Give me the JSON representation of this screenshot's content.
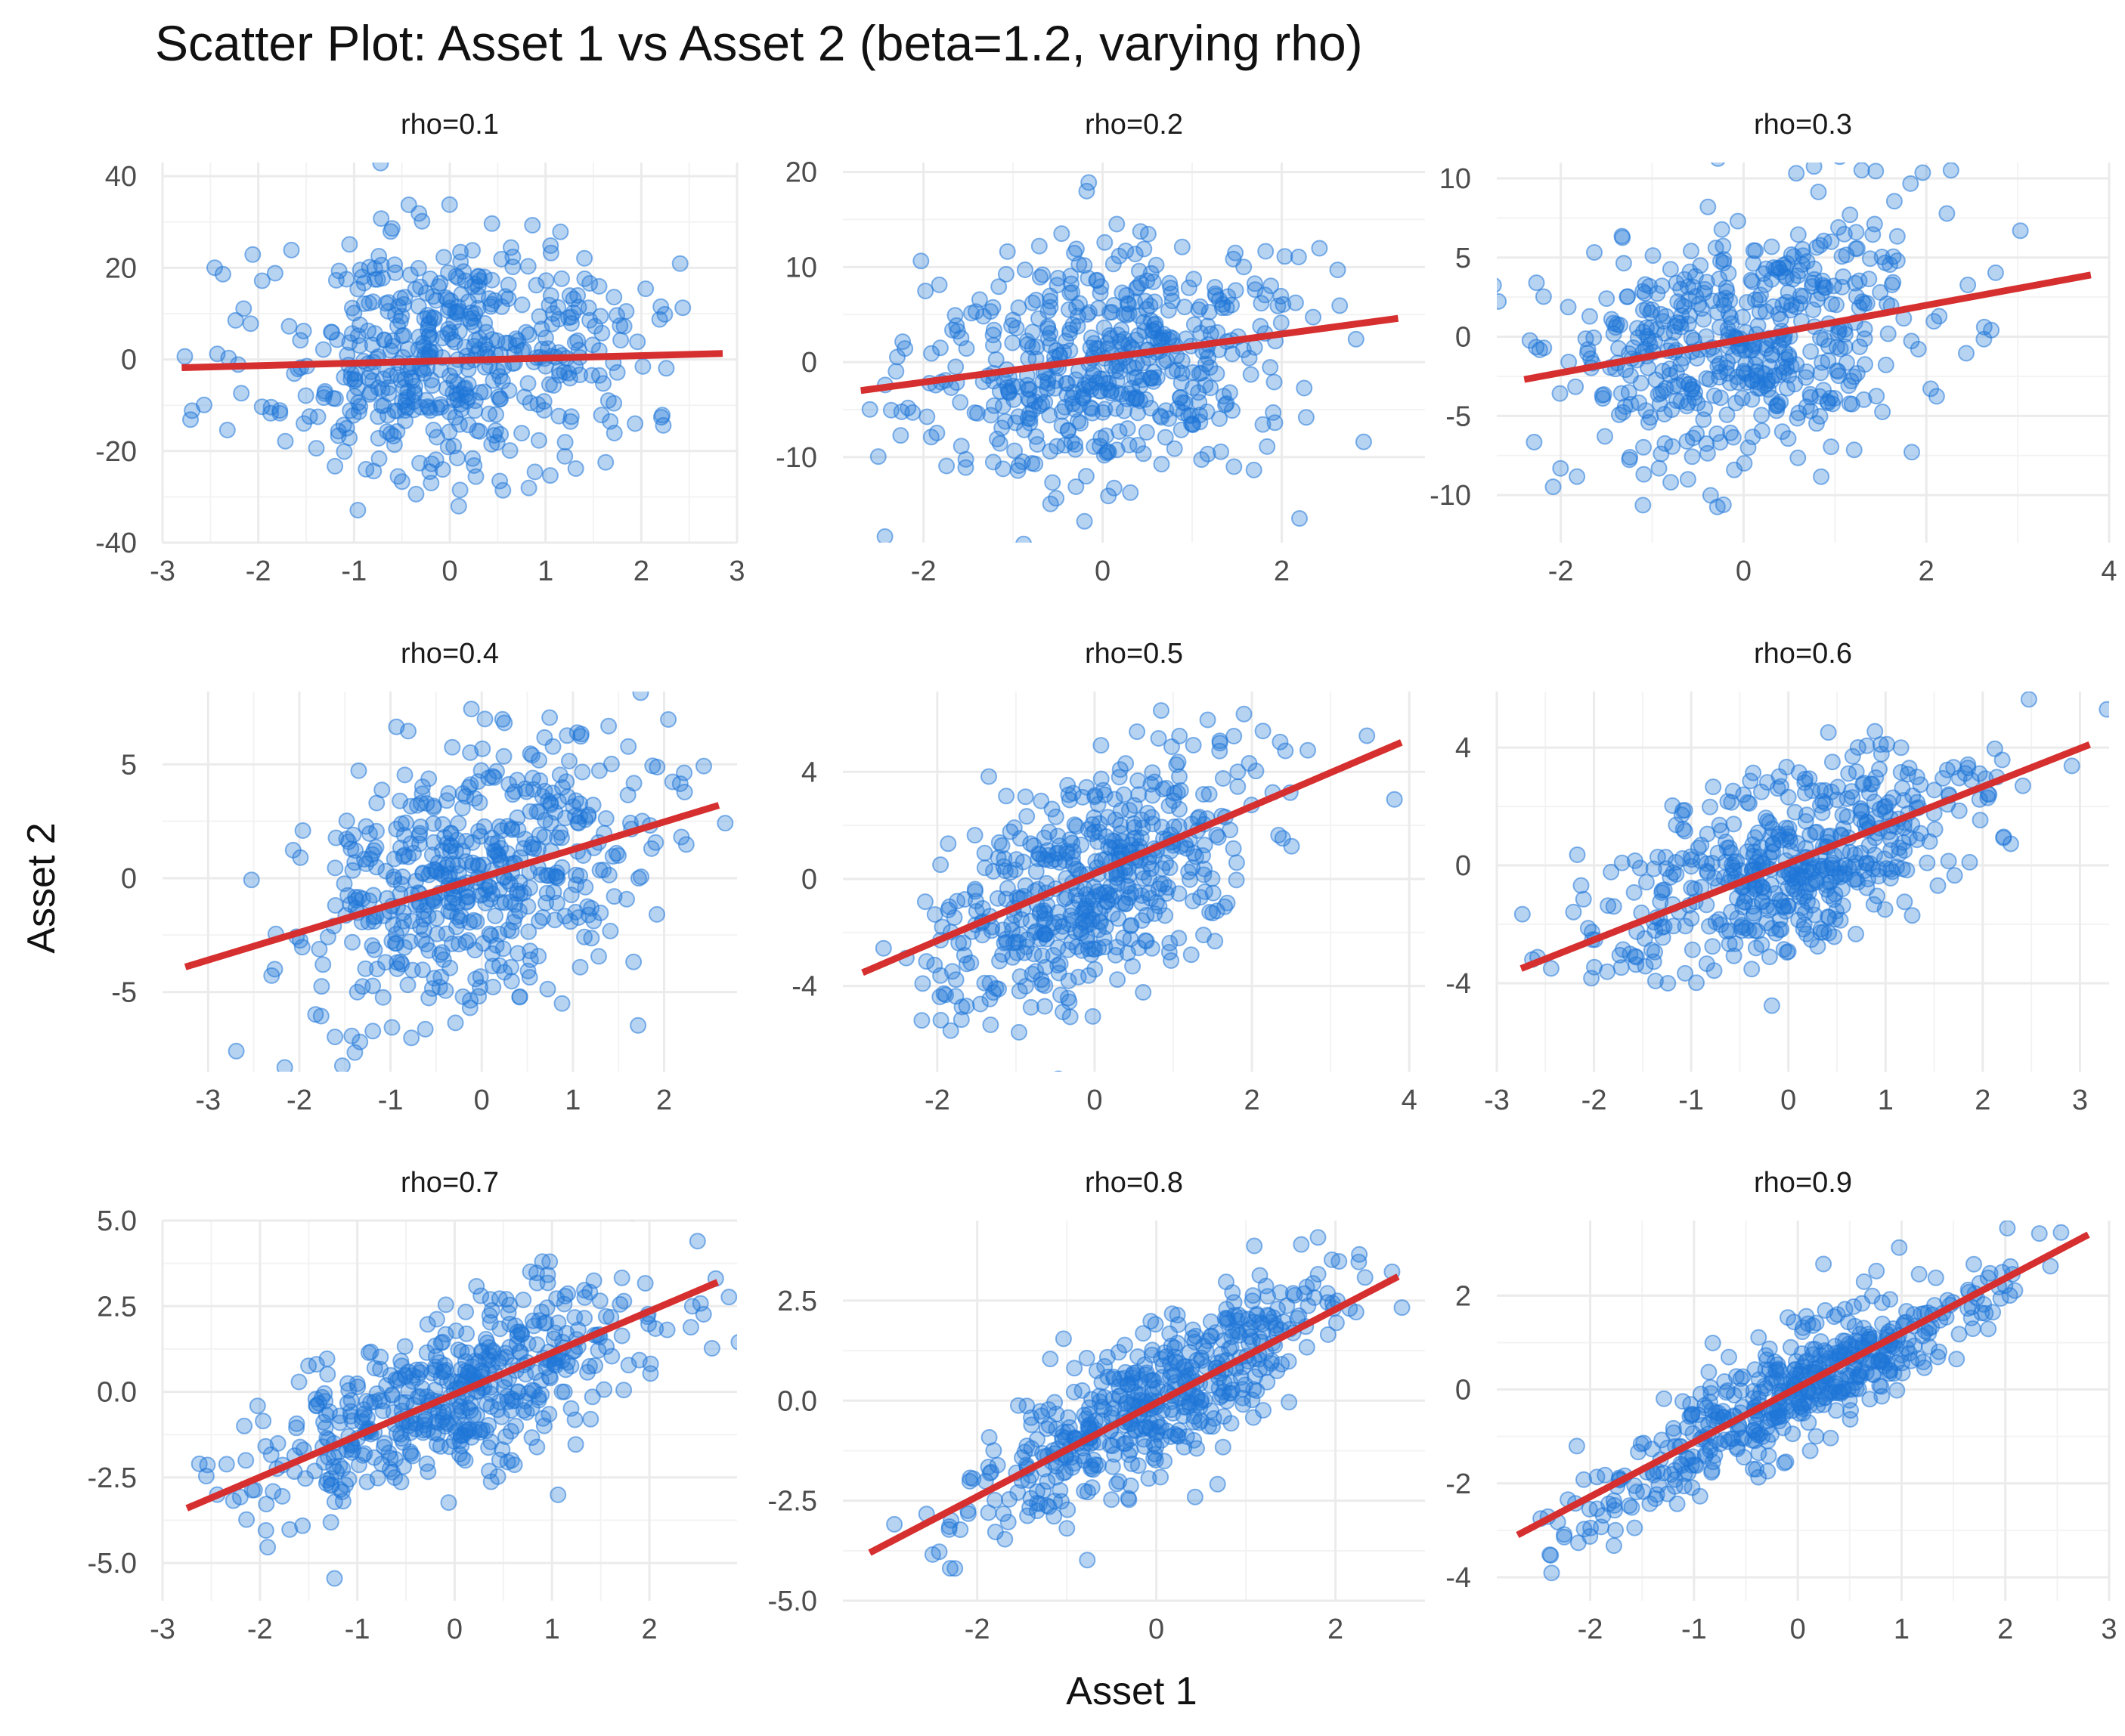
{
  "chart_data": {
    "type": "scatter",
    "title": "Scatter Plot: Asset 1 vs Asset 2 (beta=1.2, varying rho)",
    "xlabel": "Asset 1",
    "ylabel": "Asset 2",
    "grid": true,
    "point_color": "#1f77d8",
    "line_color": "#d62f2f",
    "background": "#ffffff",
    "grid_color": "#ebebeb",
    "n_points_per_panel": 500,
    "panels": [
      {
        "title": "rho=0.1",
        "rho": 0.1,
        "sy": 13.5,
        "xlim": [
          -3.0,
          3.0
        ],
        "ylim": [
          -40,
          43
        ],
        "xticks": [
          "-3",
          "-2",
          "-1",
          "0",
          "1",
          "2",
          "3"
        ],
        "xtick_values": [
          -3,
          -2,
          -1,
          0,
          1,
          2,
          3
        ],
        "yticks": [
          "-40",
          "-20",
          "0",
          "20",
          "40"
        ],
        "ytick_values": [
          -40,
          -20,
          0,
          20,
          40
        ],
        "fit": {
          "x": [
            -2.8,
            2.85
          ],
          "y": [
            -1.8,
            1.3
          ]
        }
      },
      {
        "title": "rho=0.2",
        "rho": 0.2,
        "sy": 6.0,
        "xlim": [
          -2.9,
          3.6
        ],
        "ylim": [
          -19,
          21
        ],
        "xticks": [
          "-2",
          "0",
          "2"
        ],
        "xtick_values": [
          -2,
          0,
          2
        ],
        "yticks": [
          "-10",
          "0",
          "10",
          "20"
        ],
        "ytick_values": [
          -10,
          0,
          10,
          20
        ],
        "fit": {
          "x": [
            -2.7,
            3.3
          ],
          "y": [
            -3.0,
            4.6
          ]
        }
      },
      {
        "title": "rho=0.3",
        "rho": 0.3,
        "sy": 4.0,
        "xlim": [
          -2.7,
          4.0
        ],
        "ylim": [
          -13,
          11
        ],
        "xticks": [
          "-2",
          "0",
          "2",
          "4"
        ],
        "xtick_values": [
          -2,
          0,
          2,
          4
        ],
        "yticks": [
          "-10",
          "-5",
          "0",
          "5",
          "10"
        ],
        "ytick_values": [
          -10,
          -5,
          0,
          5,
          10
        ],
        "fit": {
          "x": [
            -2.4,
            3.8
          ],
          "y": [
            -2.7,
            3.9
          ]
        }
      },
      {
        "title": "rho=0.4",
        "rho": 0.4,
        "sy": 3.0,
        "xlim": [
          -3.5,
          2.8
        ],
        "ylim": [
          -8.5,
          8.2
        ],
        "xticks": [
          "-3",
          "-2",
          "-1",
          "0",
          "1",
          "2"
        ],
        "xtick_values": [
          -3,
          -2,
          -1,
          0,
          1,
          2
        ],
        "yticks": [
          "-5",
          "0",
          "5"
        ],
        "ytick_values": [
          -5,
          0,
          5
        ],
        "fit": {
          "x": [
            -3.25,
            2.6
          ],
          "y": [
            -3.9,
            3.2
          ]
        }
      },
      {
        "title": "rho=0.5",
        "rho": 0.5,
        "sy": 2.4,
        "xlim": [
          -3.2,
          4.2
        ],
        "ylim": [
          -7.2,
          7.0
        ],
        "xticks": [
          "-2",
          "0",
          "2",
          "4"
        ],
        "xtick_values": [
          -2,
          0,
          2,
          4
        ],
        "yticks": [
          "-4",
          "0",
          "4"
        ],
        "ytick_values": [
          -4,
          0,
          4
        ],
        "fit": {
          "x": [
            -2.95,
            3.9
          ],
          "y": [
            -3.5,
            5.1
          ]
        }
      },
      {
        "title": "rho=0.6",
        "rho": 0.6,
        "sy": 2.0,
        "xlim": [
          -3.0,
          3.3
        ],
        "ylim": [
          -7.0,
          5.9
        ],
        "xticks": [
          "-3",
          "-2",
          "-1",
          "0",
          "1",
          "2",
          "3"
        ],
        "xtick_values": [
          -3,
          -2,
          -1,
          0,
          1,
          2,
          3
        ],
        "yticks": [
          "-4",
          "0",
          "4"
        ],
        "ytick_values": [
          -4,
          0,
          4
        ],
        "fit": {
          "x": [
            -2.75,
            3.1
          ],
          "y": [
            -3.5,
            4.1
          ]
        }
      },
      {
        "title": "rho=0.7",
        "rho": 0.7,
        "sy": 1.65,
        "xlim": [
          -3.0,
          2.9
        ],
        "ylim": [
          -6.1,
          5.0
        ],
        "xticks": [
          "-3",
          "-2",
          "-1",
          "0",
          "1",
          "2"
        ],
        "xtick_values": [
          -3,
          -2,
          -1,
          0,
          1,
          2
        ],
        "yticks": [
          "-5.0",
          "-2.5",
          "0.0",
          "2.5",
          "5.0"
        ],
        "ytick_values": [
          -5,
          -2.5,
          0,
          2.5,
          5
        ],
        "fit": {
          "x": [
            -2.75,
            2.7
          ],
          "y": [
            -3.4,
            3.2
          ]
        }
      },
      {
        "title": "rho=0.8",
        "rho": 0.8,
        "sy": 1.5,
        "xlim": [
          -3.5,
          3.0
        ],
        "ylim": [
          -5.0,
          4.5
        ],
        "xticks": [
          "-2",
          "0",
          "2"
        ],
        "xtick_values": [
          -2,
          0,
          2
        ],
        "yticks": [
          "-5.0",
          "-2.5",
          "0.0",
          "2.5"
        ],
        "ytick_values": [
          -5,
          -2.5,
          0,
          2.5
        ],
        "fit": {
          "x": [
            -3.2,
            2.7
          ],
          "y": [
            -3.8,
            3.1
          ]
        }
      },
      {
        "title": "rho=0.9",
        "rho": 0.9,
        "sy": 1.33,
        "xlim": [
          -2.9,
          3.0
        ],
        "ylim": [
          -4.5,
          3.6
        ],
        "xticks": [
          "-2",
          "-1",
          "0",
          "1",
          "2",
          "3"
        ],
        "xtick_values": [
          -2,
          -1,
          0,
          1,
          2,
          3
        ],
        "yticks": [
          "-4",
          "-2",
          "0",
          "2"
        ],
        "ytick_values": [
          -4,
          -2,
          0,
          2
        ],
        "fit": {
          "x": [
            -2.7,
            2.8
          ],
          "y": [
            -3.1,
            3.3
          ]
        }
      }
    ]
  }
}
